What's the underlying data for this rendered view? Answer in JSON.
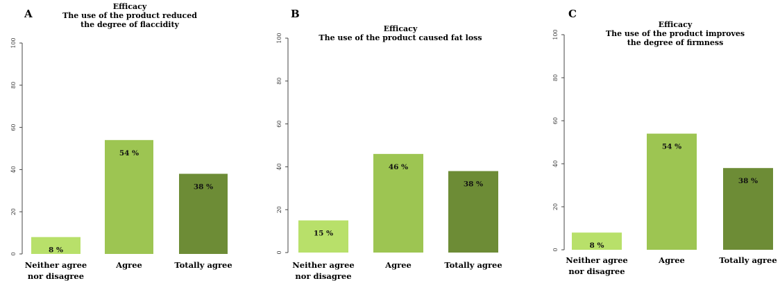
{
  "chart_data": [
    {
      "type": "bar",
      "panel_label": "A",
      "title": "Efficacy",
      "subtitle_lines": [
        "The use of the product reduced",
        "the degree of flaccidity"
      ],
      "categories": [
        [
          "Neither agree",
          "nor disagree"
        ],
        [
          "Agree"
        ],
        [
          "Totally agree"
        ]
      ],
      "values": [
        8,
        54,
        38
      ],
      "value_labels": [
        "8 %",
        "54 %",
        "38 %"
      ],
      "ylim": [
        0,
        100
      ],
      "yticks": [
        "0",
        "20",
        "40",
        "60",
        "80",
        "100"
      ],
      "colors": [
        "#b8e06a",
        "#9dc552",
        "#6d8c36"
      ],
      "grid": false
    },
    {
      "type": "bar",
      "panel_label": "B",
      "title": "Efficacy",
      "subtitle_lines": [
        "The use of the product caused fat loss"
      ],
      "categories": [
        [
          "Neither agree",
          "nor disagree"
        ],
        [
          "Agree"
        ],
        [
          "Totally agree"
        ]
      ],
      "values": [
        15,
        46,
        38
      ],
      "value_labels": [
        "15 %",
        "46 %",
        "38 %"
      ],
      "ylim": [
        0,
        100
      ],
      "yticks": [
        "0",
        "20",
        "40",
        "60",
        "80",
        "100"
      ],
      "colors": [
        "#b8e06a",
        "#9dc552",
        "#6d8c36"
      ],
      "grid": false
    },
    {
      "type": "bar",
      "panel_label": "C",
      "title": "Efficacy",
      "subtitle_lines": [
        "The use of the product improves",
        "the degree of firmness"
      ],
      "categories": [
        [
          "Neither agree",
          "nor disagree"
        ],
        [
          "Agree"
        ],
        [
          "Totally agree"
        ]
      ],
      "values": [
        8,
        54,
        38
      ],
      "value_labels": [
        "8 %",
        "54 %",
        "38 %"
      ],
      "ylim": [
        0,
        100
      ],
      "yticks": [
        "0",
        "20",
        "40",
        "60",
        "80",
        "100"
      ],
      "colors": [
        "#b8e06a",
        "#9dc552",
        "#6d8c36"
      ],
      "grid": false
    }
  ]
}
